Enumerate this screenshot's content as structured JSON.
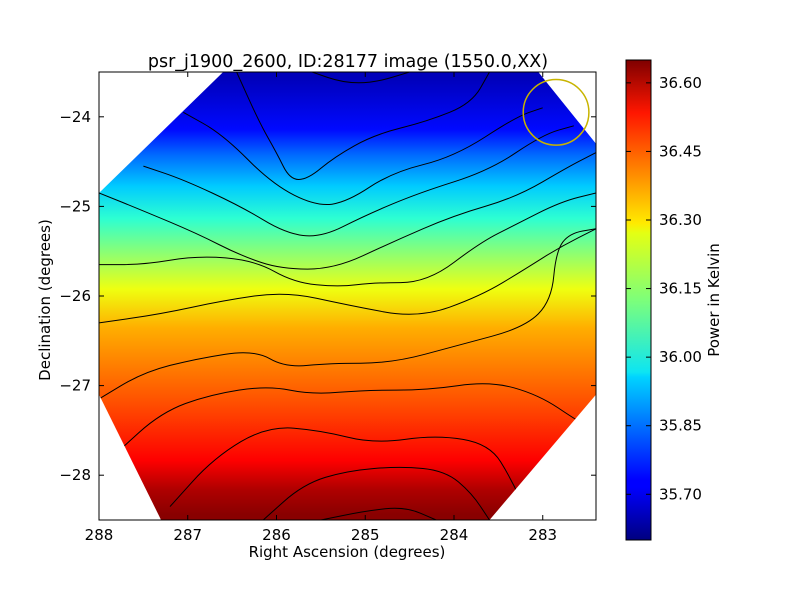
{
  "chart_data": {
    "type": "heatmap",
    "title": "psr_j1900_2600, ID:28177 image (1550.0,XX)",
    "xlabel": "Right Ascension (degrees)",
    "ylabel": "Declination (degrees)",
    "colorbar_label": "Power in Kelvin",
    "xlim": [
      288.0,
      282.4
    ],
    "ylim": [
      -28.5,
      -23.5
    ],
    "x_ticks": [
      288,
      287,
      286,
      285,
      284,
      283
    ],
    "x_tick_labels": [
      "288",
      "287",
      "286",
      "285",
      "284",
      "283"
    ],
    "y_ticks": [
      -24,
      -25,
      -26,
      -27,
      -28
    ],
    "y_tick_labels": [
      "−24",
      "−25",
      "−26",
      "−27",
      "−28"
    ],
    "colorbar_range": [
      35.6,
      36.65
    ],
    "colorbar_ticks": [
      35.7,
      35.85,
      36.0,
      36.15,
      36.3,
      36.45,
      36.6
    ],
    "colorbar_tick_labels": [
      "35.70",
      "35.85",
      "36.00",
      "36.15",
      "36.30",
      "36.45",
      "36.60"
    ],
    "colormap": "jet",
    "footprint": "diamond",
    "beam_marker": {
      "ra": 282.85,
      "dec": -23.95,
      "radius_deg": 0.37,
      "color": "#c8b400"
    },
    "contour_color": "#000000",
    "contours": [
      {
        "level": 35.66,
        "points": [
          [
            285.6,
            -23.5
          ],
          [
            285.25,
            -23.62
          ],
          [
            284.9,
            -23.62
          ],
          [
            284.5,
            -23.5
          ]
        ]
      },
      {
        "level": 35.74,
        "points": [
          [
            286.45,
            -23.5
          ],
          [
            286.2,
            -24.05
          ],
          [
            286.0,
            -24.4
          ],
          [
            285.85,
            -24.7
          ],
          [
            285.65,
            -24.7
          ],
          [
            285.35,
            -24.45
          ],
          [
            284.9,
            -24.2
          ],
          [
            284.3,
            -24.05
          ],
          [
            283.8,
            -23.85
          ],
          [
            283.6,
            -23.5
          ]
        ]
      },
      {
        "level": 35.84,
        "points": [
          [
            287.05,
            -23.95
          ],
          [
            286.6,
            -24.2
          ],
          [
            286.05,
            -24.75
          ],
          [
            285.55,
            -25.0
          ],
          [
            285.2,
            -24.95
          ],
          [
            284.7,
            -24.62
          ],
          [
            284.0,
            -24.45
          ],
          [
            283.3,
            -24.0
          ],
          [
            283.0,
            -23.9
          ]
        ]
      },
      {
        "level": 35.94,
        "points": [
          [
            287.5,
            -24.55
          ],
          [
            287.05,
            -24.7
          ],
          [
            286.4,
            -25.0
          ],
          [
            285.9,
            -25.3
          ],
          [
            285.5,
            -25.35
          ],
          [
            285.0,
            -25.1
          ],
          [
            284.4,
            -24.85
          ],
          [
            283.6,
            -24.6
          ],
          [
            283.0,
            -24.2
          ],
          [
            282.65,
            -24.1
          ]
        ]
      },
      {
        "level": 36.04,
        "points": [
          [
            288.0,
            -24.85
          ],
          [
            287.5,
            -25.05
          ],
          [
            286.9,
            -25.3
          ],
          [
            286.4,
            -25.55
          ],
          [
            285.95,
            -25.7
          ],
          [
            285.35,
            -25.7
          ],
          [
            284.7,
            -25.4
          ],
          [
            284.0,
            -25.1
          ],
          [
            283.3,
            -24.9
          ],
          [
            282.7,
            -24.55
          ],
          [
            282.4,
            -24.4
          ]
        ]
      },
      {
        "level": 36.14,
        "points": [
          [
            288.0,
            -25.65
          ],
          [
            287.5,
            -25.65
          ],
          [
            286.9,
            -25.55
          ],
          [
            286.25,
            -25.6
          ],
          [
            285.8,
            -25.85
          ],
          [
            285.3,
            -25.9
          ],
          [
            284.9,
            -25.85
          ],
          [
            284.3,
            -25.85
          ],
          [
            283.7,
            -25.4
          ],
          [
            283.3,
            -25.2
          ],
          [
            282.8,
            -24.95
          ],
          [
            282.4,
            -24.85
          ]
        ]
      },
      {
        "level": 36.24,
        "points": [
          [
            288.0,
            -26.3
          ],
          [
            287.3,
            -26.2
          ],
          [
            286.6,
            -26.05
          ],
          [
            285.9,
            -25.95
          ],
          [
            285.2,
            -26.1
          ],
          [
            284.4,
            -26.25
          ],
          [
            283.7,
            -26.0
          ],
          [
            283.2,
            -25.7
          ],
          [
            282.8,
            -25.45
          ],
          [
            282.4,
            -25.25
          ]
        ]
      },
      {
        "level": 36.34,
        "points": [
          [
            288.0,
            -27.15
          ],
          [
            287.5,
            -26.85
          ],
          [
            286.9,
            -26.7
          ],
          [
            286.25,
            -26.6
          ],
          [
            285.9,
            -26.8
          ],
          [
            285.4,
            -26.75
          ],
          [
            284.7,
            -26.75
          ],
          [
            283.95,
            -26.55
          ],
          [
            283.2,
            -26.35
          ],
          [
            282.9,
            -26.05
          ],
          [
            282.85,
            -25.5
          ],
          [
            282.7,
            -25.3
          ],
          [
            282.4,
            -25.25
          ]
        ]
      },
      {
        "level": 36.44,
        "points": [
          [
            287.8,
            -27.75
          ],
          [
            287.3,
            -27.3
          ],
          [
            286.75,
            -27.1
          ],
          [
            286.1,
            -27.0
          ],
          [
            285.6,
            -27.1
          ],
          [
            285.0,
            -27.05
          ],
          [
            284.3,
            -27.05
          ],
          [
            283.6,
            -26.95
          ],
          [
            283.05,
            -27.1
          ],
          [
            282.6,
            -27.4
          ],
          [
            282.4,
            -27.5
          ]
        ]
      },
      {
        "level": 36.52,
        "points": [
          [
            287.2,
            -28.35
          ],
          [
            286.7,
            -27.8
          ],
          [
            286.1,
            -27.45
          ],
          [
            285.5,
            -27.5
          ],
          [
            284.9,
            -27.65
          ],
          [
            284.2,
            -27.55
          ],
          [
            283.6,
            -27.65
          ],
          [
            283.35,
            -28.05
          ],
          [
            283.15,
            -28.5
          ]
        ]
      },
      {
        "level": 36.6,
        "points": [
          [
            286.15,
            -28.5
          ],
          [
            285.7,
            -28.1
          ],
          [
            285.2,
            -27.95
          ],
          [
            284.6,
            -27.9
          ],
          [
            284.1,
            -27.95
          ],
          [
            283.8,
            -28.2
          ],
          [
            283.6,
            -28.5
          ]
        ]
      },
      {
        "level": 36.64,
        "points": [
          [
            285.5,
            -28.5
          ],
          [
            285.0,
            -28.4
          ],
          [
            284.55,
            -28.35
          ],
          [
            284.2,
            -28.5
          ]
        ]
      }
    ]
  }
}
